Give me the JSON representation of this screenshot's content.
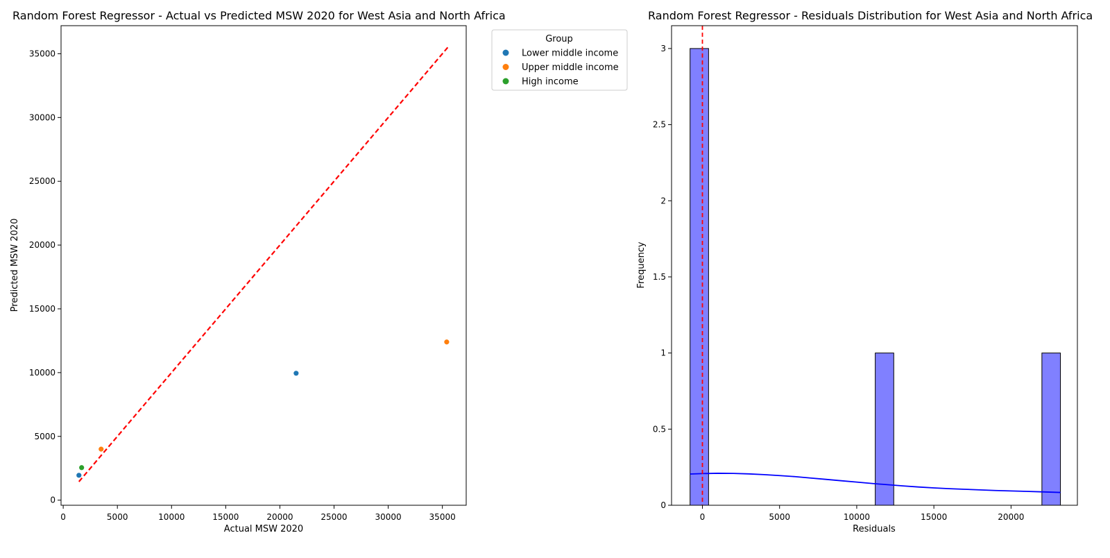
{
  "chart_data": [
    {
      "type": "scatter",
      "title": "Random Forest Regressor - Actual vs Predicted MSW 2020 for West Asia and North Africa",
      "xlabel": "Actual MSW 2020",
      "ylabel": "Predicted MSW 2020",
      "xlim": [
        -200,
        37200
      ],
      "ylim": [
        -400,
        37200
      ],
      "xticks": [
        0,
        5000,
        10000,
        15000,
        20000,
        25000,
        30000,
        35000
      ],
      "yticks": [
        0,
        5000,
        10000,
        15000,
        20000,
        25000,
        30000,
        35000
      ],
      "grid": false,
      "legend": {
        "title": "Group",
        "placement": "outside-top-right",
        "entries": [
          {
            "label": "Lower middle income",
            "color": "#1f77b4"
          },
          {
            "label": "Upper middle income",
            "color": "#ff7f0e"
          },
          {
            "label": "High income",
            "color": "#2ca02c"
          }
        ]
      },
      "series": [
        {
          "name": "Lower middle income",
          "color": "#1f77b4",
          "points": [
            {
              "x": 1450,
              "y": 1950
            },
            {
              "x": 21500,
              "y": 9950
            }
          ]
        },
        {
          "name": "Upper middle income",
          "color": "#ff7f0e",
          "points": [
            {
              "x": 3500,
              "y": 4000
            },
            {
              "x": 35400,
              "y": 12400
            }
          ]
        },
        {
          "name": "High income",
          "color": "#2ca02c",
          "points": [
            {
              "x": 1700,
              "y": 2550
            }
          ]
        }
      ],
      "reference_line": {
        "from": [
          1450,
          1450
        ],
        "to": [
          35500,
          35500
        ],
        "color": "#ff0000",
        "style": "dashed"
      }
    },
    {
      "type": "bar",
      "title": "Random Forest Regressor - Residuals Distribution for West Asia and North Africa",
      "xlabel": "Residuals",
      "ylabel": "Frequency",
      "xlim": [
        -2000,
        24300
      ],
      "ylim": [
        0,
        3.15
      ],
      "xticks": [
        0,
        5000,
        10000,
        15000,
        20000
      ],
      "yticks": [
        0.0,
        0.5,
        1.0,
        1.5,
        2.0,
        2.5,
        3.0
      ],
      "grid": false,
      "bar_color": "#8080ff",
      "bins": [
        {
          "start": -800,
          "end": 400,
          "value": 3
        },
        {
          "start": 11200,
          "end": 12400,
          "value": 1
        },
        {
          "start": 22000,
          "end": 23200,
          "value": 1
        }
      ],
      "kde": {
        "color": "#0000ff",
        "x": [
          -800,
          0,
          1000,
          2000,
          3000,
          4000,
          5000,
          6000,
          7000,
          8000,
          9000,
          10000,
          11000,
          12000,
          13000,
          14000,
          15000,
          16000,
          17000,
          18000,
          19000,
          20000,
          21000,
          22000,
          23200
        ],
        "y": [
          0.205,
          0.208,
          0.21,
          0.209,
          0.206,
          0.201,
          0.195,
          0.188,
          0.179,
          0.17,
          0.161,
          0.152,
          0.143,
          0.135,
          0.127,
          0.12,
          0.114,
          0.109,
          0.105,
          0.101,
          0.097,
          0.094,
          0.091,
          0.088,
          0.084
        ]
      },
      "vline": {
        "x": 0,
        "color": "#ff0000",
        "style": "dashed"
      }
    }
  ]
}
